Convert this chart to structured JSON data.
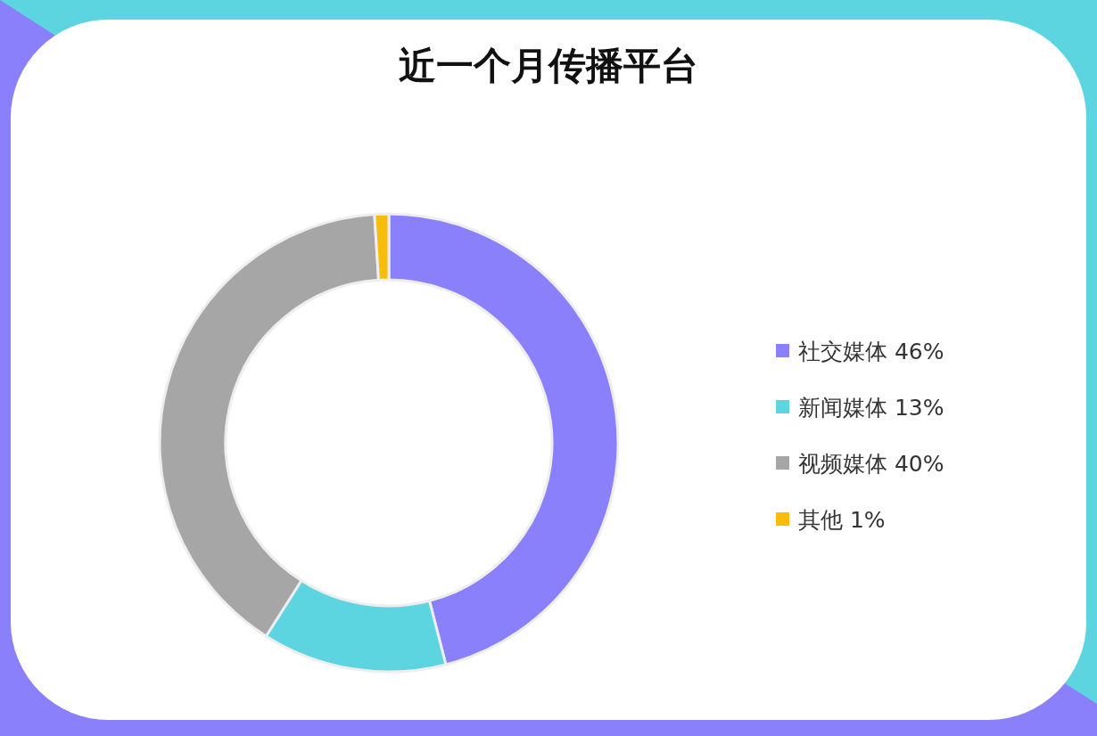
{
  "chart_data": {
    "type": "donut",
    "title": "近一个月传播平台",
    "categories": [
      "社交媒体",
      "新闻媒体",
      "视频媒体",
      "其他"
    ],
    "values": [
      46,
      13,
      40,
      1
    ],
    "value_labels": [
      "46%",
      "13%",
      "40%",
      "1%"
    ],
    "colors": [
      "#8b80fb",
      "#5dd5e1",
      "#a6a6a6",
      "#f8bd0b"
    ],
    "legend": "right"
  }
}
